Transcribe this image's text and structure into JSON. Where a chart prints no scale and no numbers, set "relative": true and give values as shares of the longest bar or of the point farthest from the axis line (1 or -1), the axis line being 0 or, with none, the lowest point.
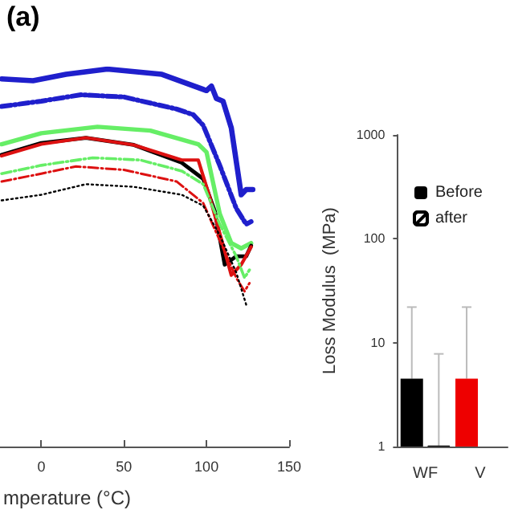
{
  "chart_data": [
    {
      "type": "line",
      "annotations": [
        "(a)"
      ],
      "xlabel": "mperature (°C)",
      "relative": true,
      "xlim": [
        -25,
        150
      ],
      "xticks": [
        0,
        50,
        100,
        150
      ],
      "grid": false,
      "legend": false,
      "marker": "none",
      "series": [
        {
          "color": "#1f1fcc",
          "line_style": "solid",
          "x": [
            -24,
            -5,
            15,
            40,
            73,
            100,
            103,
            106,
            110,
            115,
            121,
            124,
            128
          ],
          "values": [
            0.974,
            0.969,
            0.986,
            1,
            0.986,
            0.943,
            0.955,
            0.922,
            0.915,
            0.844,
            0.667,
            0.681,
            0.681
          ]
        },
        {
          "color": "#1f1fcc",
          "line_style": "dashed",
          "x": [
            -24,
            0,
            24,
            50,
            82,
            92,
            98,
            108,
            118,
            124,
            127
          ],
          "values": [
            0.901,
            0.915,
            0.932,
            0.926,
            0.894,
            0.879,
            0.851,
            0.745,
            0.631,
            0.589,
            0.596
          ]
        },
        {
          "color": "#66ee66",
          "line_style": "solid",
          "x": [
            -24,
            0,
            34,
            66,
            95,
            100,
            108,
            115,
            121,
            127
          ],
          "values": [
            0.801,
            0.83,
            0.847,
            0.837,
            0.801,
            0.78,
            0.617,
            0.539,
            0.525,
            0.539
          ]
        },
        {
          "color": "#000000",
          "line_style": "solid",
          "x": [
            -24,
            0,
            27,
            56,
            85,
            98,
            105,
            111,
            118,
            124,
            127
          ],
          "values": [
            0.773,
            0.804,
            0.818,
            0.799,
            0.752,
            0.709,
            0.624,
            0.482,
            0.504,
            0.504,
            0.532
          ]
        },
        {
          "color": "#dd1111",
          "line_style": "solid",
          "x": [
            -24,
            0,
            27,
            56,
            85,
            95,
            102,
            111,
            115,
            121,
            127
          ],
          "values": [
            0.77,
            0.801,
            0.818,
            0.799,
            0.759,
            0.759,
            0.66,
            0.518,
            0.454,
            0.482,
            0.529
          ]
        },
        {
          "color": "#66ee66",
          "line_style": "dashed",
          "x": [
            -24,
            0,
            31,
            60,
            85,
            98,
            108,
            118,
            123,
            126
          ],
          "values": [
            0.723,
            0.745,
            0.765,
            0.759,
            0.73,
            0.695,
            0.589,
            0.504,
            0.447,
            0.468
          ]
        },
        {
          "color": "#dd1111",
          "line_style": "dashed",
          "x": [
            -24,
            0,
            21,
            50,
            82,
            98,
            108,
            118,
            123,
            126
          ],
          "values": [
            0.702,
            0.723,
            0.742,
            0.733,
            0.702,
            0.645,
            0.546,
            0.447,
            0.411,
            0.433
          ]
        },
        {
          "color": "#000000",
          "line_style": "dotted",
          "x": [
            -24,
            0,
            27,
            56,
            85,
            98,
            108,
            118,
            124
          ],
          "values": [
            0.652,
            0.667,
            0.695,
            0.688,
            0.667,
            0.638,
            0.56,
            0.461,
            0.376
          ]
        }
      ]
    },
    {
      "type": "bar",
      "ylabel": "Loss Modulus  (MPa)",
      "categories": [
        "WF",
        "V"
      ],
      "log": true,
      "ylim": [
        1,
        1000
      ],
      "yticks": [
        1,
        10,
        100,
        1000
      ],
      "grid": false,
      "legend": "top left",
      "series": [
        {
          "name": "Before",
          "color": "#000000",
          "colors": [
            "#000000",
            "#ee0000"
          ],
          "values": [
            4.5,
            4.5
          ],
          "errors": [
            [
              4.5,
              22
            ],
            [
              4.5,
              22
            ]
          ]
        },
        {
          "name": "after",
          "color": "#ffffff",
          "values": [
            1.02,
            null
          ],
          "errors": [
            [
              1.02,
              7.8
            ],
            null
          ]
        }
      ]
    }
  ]
}
